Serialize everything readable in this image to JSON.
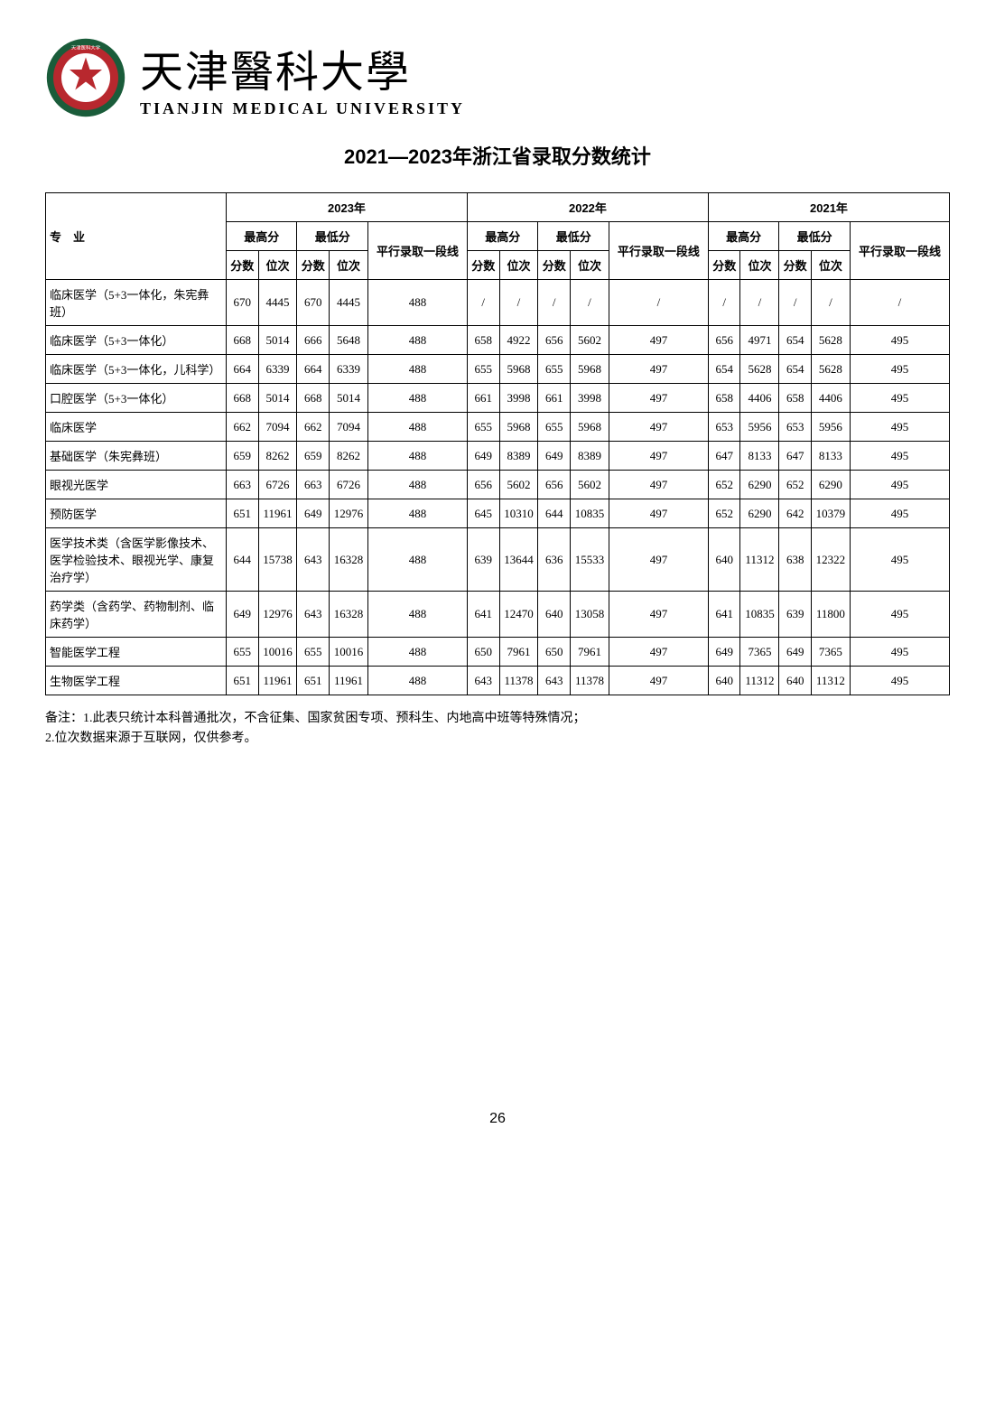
{
  "university": {
    "name_cn": "天津醫科大學",
    "name_en": "TIANJIN MEDICAL UNIVERSITY",
    "logo_colors": {
      "ring_outer": "#1a5c3a",
      "ring_inner": "#b8282e",
      "center": "#ffffff"
    }
  },
  "title": "2021—2023年浙江省录取分数统计",
  "table": {
    "header": {
      "major_label": "专　业",
      "years": [
        "2023年",
        "2022年",
        "2021年"
      ],
      "score_groups": [
        "最高分",
        "最低分"
      ],
      "batch_label": "平行录取一段线",
      "sub_cols": [
        "分数",
        "位次"
      ]
    },
    "rows": [
      {
        "major": "临床医学（5+3一体化，朱宪彝班）",
        "y2023": {
          "max_score": 670,
          "max_rank": 4445,
          "min_score": 670,
          "min_rank": 4445,
          "line": 488
        },
        "y2022": {
          "max_score": "/",
          "max_rank": "/",
          "min_score": "/",
          "min_rank": "/",
          "line": "/"
        },
        "y2021": {
          "max_score": "/",
          "max_rank": "/",
          "min_score": "/",
          "min_rank": "/",
          "line": "/"
        }
      },
      {
        "major": "临床医学（5+3一体化）",
        "y2023": {
          "max_score": 668,
          "max_rank": 5014,
          "min_score": 666,
          "min_rank": 5648,
          "line": 488
        },
        "y2022": {
          "max_score": 658,
          "max_rank": 4922,
          "min_score": 656,
          "min_rank": 5602,
          "line": 497
        },
        "y2021": {
          "max_score": 656,
          "max_rank": 4971,
          "min_score": 654,
          "min_rank": 5628,
          "line": 495
        }
      },
      {
        "major": "临床医学（5+3一体化，儿科学）",
        "y2023": {
          "max_score": 664,
          "max_rank": 6339,
          "min_score": 664,
          "min_rank": 6339,
          "line": 488
        },
        "y2022": {
          "max_score": 655,
          "max_rank": 5968,
          "min_score": 655,
          "min_rank": 5968,
          "line": 497
        },
        "y2021": {
          "max_score": 654,
          "max_rank": 5628,
          "min_score": 654,
          "min_rank": 5628,
          "line": 495
        }
      },
      {
        "major": "口腔医学（5+3一体化）",
        "y2023": {
          "max_score": 668,
          "max_rank": 5014,
          "min_score": 668,
          "min_rank": 5014,
          "line": 488
        },
        "y2022": {
          "max_score": 661,
          "max_rank": 3998,
          "min_score": 661,
          "min_rank": 3998,
          "line": 497
        },
        "y2021": {
          "max_score": 658,
          "max_rank": 4406,
          "min_score": 658,
          "min_rank": 4406,
          "line": 495
        }
      },
      {
        "major": "临床医学",
        "y2023": {
          "max_score": 662,
          "max_rank": 7094,
          "min_score": 662,
          "min_rank": 7094,
          "line": 488
        },
        "y2022": {
          "max_score": 655,
          "max_rank": 5968,
          "min_score": 655,
          "min_rank": 5968,
          "line": 497
        },
        "y2021": {
          "max_score": 653,
          "max_rank": 5956,
          "min_score": 653,
          "min_rank": 5956,
          "line": 495
        }
      },
      {
        "major": "基础医学（朱宪彝班）",
        "y2023": {
          "max_score": 659,
          "max_rank": 8262,
          "min_score": 659,
          "min_rank": 8262,
          "line": 488
        },
        "y2022": {
          "max_score": 649,
          "max_rank": 8389,
          "min_score": 649,
          "min_rank": 8389,
          "line": 497
        },
        "y2021": {
          "max_score": 647,
          "max_rank": 8133,
          "min_score": 647,
          "min_rank": 8133,
          "line": 495
        }
      },
      {
        "major": "眼视光医学",
        "y2023": {
          "max_score": 663,
          "max_rank": 6726,
          "min_score": 663,
          "min_rank": 6726,
          "line": 488
        },
        "y2022": {
          "max_score": 656,
          "max_rank": 5602,
          "min_score": 656,
          "min_rank": 5602,
          "line": 497
        },
        "y2021": {
          "max_score": 652,
          "max_rank": 6290,
          "min_score": 652,
          "min_rank": 6290,
          "line": 495
        }
      },
      {
        "major": "预防医学",
        "y2023": {
          "max_score": 651,
          "max_rank": 11961,
          "min_score": 649,
          "min_rank": 12976,
          "line": 488
        },
        "y2022": {
          "max_score": 645,
          "max_rank": 10310,
          "min_score": 644,
          "min_rank": 10835,
          "line": 497
        },
        "y2021": {
          "max_score": 652,
          "max_rank": 6290,
          "min_score": 642,
          "min_rank": 10379,
          "line": 495
        }
      },
      {
        "major": "医学技术类（含医学影像技术、医学检验技术、眼视光学、康复治疗学）",
        "y2023": {
          "max_score": 644,
          "max_rank": 15738,
          "min_score": 643,
          "min_rank": 16328,
          "line": 488
        },
        "y2022": {
          "max_score": 639,
          "max_rank": 13644,
          "min_score": 636,
          "min_rank": 15533,
          "line": 497
        },
        "y2021": {
          "max_score": 640,
          "max_rank": 11312,
          "min_score": 638,
          "min_rank": 12322,
          "line": 495
        }
      },
      {
        "major": "药学类（含药学、药物制剂、临床药学）",
        "y2023": {
          "max_score": 649,
          "max_rank": 12976,
          "min_score": 643,
          "min_rank": 16328,
          "line": 488
        },
        "y2022": {
          "max_score": 641,
          "max_rank": 12470,
          "min_score": 640,
          "min_rank": 13058,
          "line": 497
        },
        "y2021": {
          "max_score": 641,
          "max_rank": 10835,
          "min_score": 639,
          "min_rank": 11800,
          "line": 495
        }
      },
      {
        "major": "智能医学工程",
        "y2023": {
          "max_score": 655,
          "max_rank": 10016,
          "min_score": 655,
          "min_rank": 10016,
          "line": 488
        },
        "y2022": {
          "max_score": 650,
          "max_rank": 7961,
          "min_score": 650,
          "min_rank": 7961,
          "line": 497
        },
        "y2021": {
          "max_score": 649,
          "max_rank": 7365,
          "min_score": 649,
          "min_rank": 7365,
          "line": 495
        }
      },
      {
        "major": "生物医学工程",
        "y2023": {
          "max_score": 651,
          "max_rank": 11961,
          "min_score": 651,
          "min_rank": 11961,
          "line": 488
        },
        "y2022": {
          "max_score": 643,
          "max_rank": 11378,
          "min_score": 643,
          "min_rank": 11378,
          "line": 497
        },
        "y2021": {
          "max_score": 640,
          "max_rank": 11312,
          "min_score": 640,
          "min_rank": 11312,
          "line": 495
        }
      }
    ]
  },
  "notes": {
    "line1": "备注：1.此表只统计本科普通批次，不含征集、国家贫困专项、预科生、内地高中班等特殊情况；",
    "line2": "2.位次数据来源于互联网，仅供参考。"
  },
  "page_number": "26"
}
